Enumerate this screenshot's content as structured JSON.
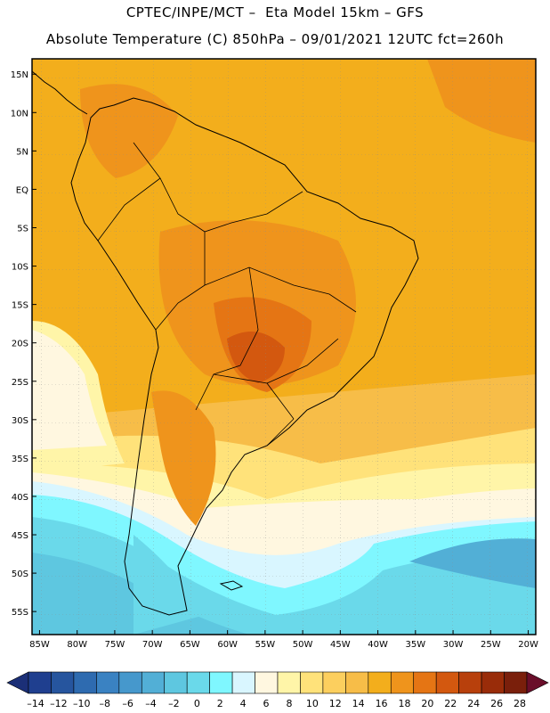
{
  "header": {
    "line1": "CPTEC/INPE/MCT –  Eta Model 15km – GFS",
    "line2": "Absolute Temperature (C) 850hPa – 09/01/2021 12UTC fct=260h"
  },
  "map": {
    "lat_labels": [
      "15N",
      "10N",
      "5N",
      "EQ",
      "5S",
      "10S",
      "15S",
      "20S",
      "25S",
      "30S",
      "35S",
      "40S",
      "45S",
      "50S",
      "55S"
    ],
    "lon_labels": [
      "85W",
      "80W",
      "75W",
      "70W",
      "65W",
      "60W",
      "55W",
      "50W",
      "45W",
      "40W",
      "35W",
      "30W",
      "25W",
      "20W"
    ],
    "lat_range": [
      17,
      -58
    ],
    "lon_range": [
      -86,
      -19
    ]
  },
  "colorbar": {
    "labels": [
      "-14",
      "-12",
      "-10",
      "-8",
      "-6",
      "-4",
      "-2",
      "0",
      "2",
      "4",
      "6",
      "8",
      "10",
      "12",
      "14",
      "16",
      "18",
      "20",
      "22",
      "24",
      "26",
      "28"
    ],
    "colors": [
      "#1f3f8f",
      "#26559e",
      "#2e6bb0",
      "#3a82c2",
      "#4698cc",
      "#52afd6",
      "#5ec7e0",
      "#6ad9ea",
      "#7ff7ff",
      "#d9f6ff",
      "#fff7e0",
      "#fff5a8",
      "#ffe27a",
      "#fccf5e",
      "#f7bd48",
      "#f3ae1c",
      "#ef941c",
      "#e57514",
      "#d3580f",
      "#b8400c",
      "#992c09",
      "#7a1f0b"
    ],
    "low_arrow": "#1b2f77",
    "high_arrow": "#6a0e2a"
  }
}
